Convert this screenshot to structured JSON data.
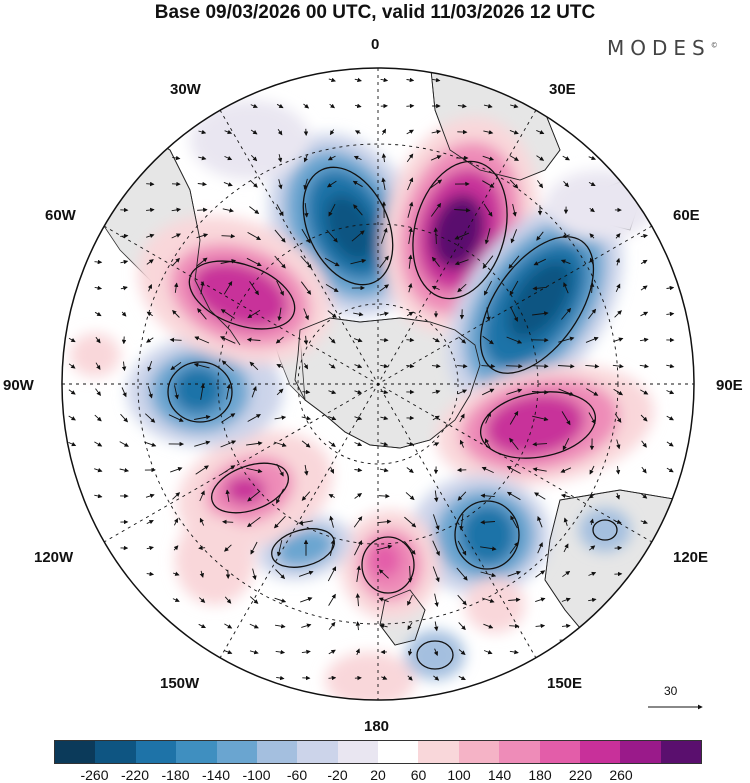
{
  "title": "Base 09/03/2026 00 UTC, valid 11/03/2026 12 UTC",
  "logo": "MODES",
  "logo_mark": "©",
  "projection_labels": {
    "top": "0",
    "top_left": "30W",
    "top_right": "30E",
    "upper_left": "60W",
    "upper_right": "60E",
    "left": "90W",
    "right": "90E",
    "lower_left": "120W",
    "lower_right": "120E",
    "bottom_left": "150W",
    "bottom_right": "150E",
    "bottom": "180"
  },
  "vector_reference": {
    "value": "30"
  },
  "colorbar": {
    "ticks": [
      "-260",
      "-220",
      "-180",
      "-140",
      "-100",
      "-60",
      "-20",
      "20",
      "60",
      "100",
      "140",
      "180",
      "220",
      "260"
    ],
    "colors": [
      "#0b3a5a",
      "#0e5582",
      "#1e73a8",
      "#3f8fc0",
      "#6aa5d0",
      "#a4bfdf",
      "#ccd4ea",
      "#e9e6f1",
      "#ffffff",
      "#f9d7da",
      "#f5b3c6",
      "#ee8cb8",
      "#e35da9",
      "#c8309a",
      "#9a1a8a",
      "#5a0f6e"
    ]
  },
  "anomaly_centers": [
    {
      "id": "neg-0E",
      "sign": "negative",
      "magnitude": 220
    },
    {
      "id": "pos-30E",
      "sign": "positive",
      "magnitude": 260
    },
    {
      "id": "neg-60E",
      "sign": "negative",
      "magnitude": 220
    },
    {
      "id": "pos-100E",
      "sign": "positive",
      "magnitude": 220
    },
    {
      "id": "neg-140E",
      "sign": "negative",
      "magnitude": 180
    },
    {
      "id": "pos-175E",
      "sign": "positive",
      "magnitude": 140
    },
    {
      "id": "neg-150W",
      "sign": "negative",
      "magnitude": 100
    },
    {
      "id": "pos-115W",
      "sign": "positive",
      "magnitude": 180
    },
    {
      "id": "neg-90W",
      "sign": "negative",
      "magnitude": 180
    },
    {
      "id": "pos-55W",
      "sign": "positive",
      "magnitude": 220
    },
    {
      "id": "neg-125E",
      "sign": "negative",
      "magnitude": 60
    },
    {
      "id": "neg-160E",
      "sign": "negative",
      "magnitude": 60
    }
  ],
  "colors": {
    "land": "#e6e6e6",
    "coast": "#222222",
    "grid": "#111111"
  }
}
